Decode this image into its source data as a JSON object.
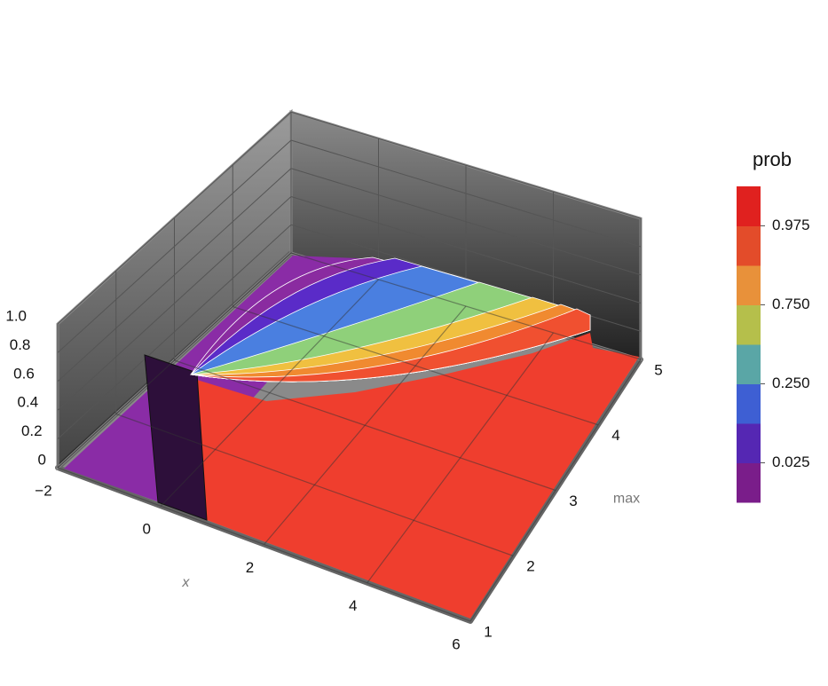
{
  "chart_data": {
    "type": "surface3d",
    "xlabel": "x",
    "ylabel": "max",
    "xlim": [
      -2,
      6
    ],
    "xticks": [
      {
        "value": -2,
        "label": "−2"
      },
      0,
      2,
      4,
      6
    ],
    "ylim": [
      1,
      5
    ],
    "yticks": [
      1,
      2,
      3,
      4,
      5
    ],
    "zlim": [
      0,
      1
    ],
    "zticks": [
      0,
      0.2,
      0.4,
      0.6,
      0.8,
      {
        "value": 1,
        "label": "1.0"
      }
    ],
    "grid": true,
    "colorbar": {
      "title": "prob",
      "colors": [
        "#7a1d8a",
        "#5527b3",
        "#3e5fd3",
        "#5aa6a6",
        "#b5bf4b",
        "#e8913a",
        "#e34c2a",
        "#e0211f"
      ],
      "ticks": [
        0.025,
        {
          "value": 0.25,
          "label": "0.250"
        },
        {
          "value": 0.75,
          "label": "0.750"
        },
        0.975
      ]
    }
  }
}
